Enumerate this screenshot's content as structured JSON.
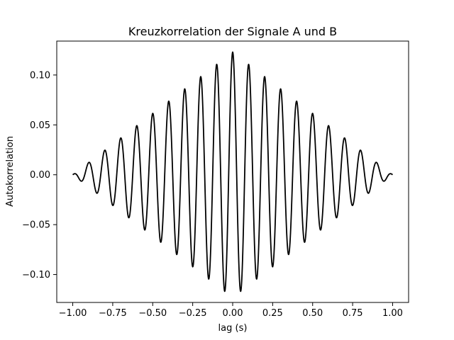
{
  "chart_data": {
    "type": "line",
    "title": "Kreuzkorrelation der Signale A und B",
    "xlabel": "lag  (s)",
    "ylabel": "Autokorrelation",
    "xlim": [
      -1.1,
      1.1
    ],
    "ylim": [
      -0.128,
      0.134
    ],
    "xticks": [
      -1.0,
      -0.75,
      -0.5,
      -0.25,
      0.0,
      0.25,
      0.5,
      0.75,
      1.0
    ],
    "xtick_labels": [
      "−1.00",
      "−0.75",
      "−0.50",
      "−0.25",
      "0.00",
      "0.25",
      "0.50",
      "0.75",
      "1.00"
    ],
    "yticks": [
      -0.1,
      -0.05,
      0.0,
      0.05,
      0.1
    ],
    "ytick_labels": [
      "−0.10",
      "−0.05",
      "0.00",
      "0.05",
      "0.10"
    ],
    "grid": false,
    "line_color": "#000000",
    "series": [
      {
        "lag_range": [
          -1.0,
          1.0
        ],
        "peak_amplitude": 0.123,
        "peak_lag": 0.0,
        "oscillation_frequency_hz": 10,
        "envelope": "triangular",
        "local_maxima": [
          {
            "x": -0.9,
            "y": 0.012
          },
          {
            "x": -0.8,
            "y": 0.025
          },
          {
            "x": -0.7,
            "y": 0.037
          },
          {
            "x": -0.6,
            "y": 0.049
          },
          {
            "x": -0.5,
            "y": 0.061
          },
          {
            "x": -0.4,
            "y": 0.074
          },
          {
            "x": -0.3,
            "y": 0.086
          },
          {
            "x": -0.2,
            "y": 0.098
          },
          {
            "x": -0.1,
            "y": 0.11
          },
          {
            "x": 0.0,
            "y": 0.123
          },
          {
            "x": 0.1,
            "y": 0.11
          },
          {
            "x": 0.2,
            "y": 0.098
          },
          {
            "x": 0.3,
            "y": 0.086
          },
          {
            "x": 0.4,
            "y": 0.074
          },
          {
            "x": 0.5,
            "y": 0.061
          },
          {
            "x": 0.6,
            "y": 0.049
          },
          {
            "x": 0.7,
            "y": 0.037
          },
          {
            "x": 0.8,
            "y": 0.025
          },
          {
            "x": 0.9,
            "y": 0.012
          }
        ],
        "local_minima": [
          {
            "x": -0.95,
            "y": -0.006
          },
          {
            "x": -0.85,
            "y": -0.018
          },
          {
            "x": -0.75,
            "y": -0.031
          },
          {
            "x": -0.65,
            "y": -0.043
          },
          {
            "x": -0.55,
            "y": -0.055
          },
          {
            "x": -0.45,
            "y": -0.067
          },
          {
            "x": -0.35,
            "y": -0.08
          },
          {
            "x": -0.25,
            "y": -0.092
          },
          {
            "x": -0.15,
            "y": -0.104
          },
          {
            "x": -0.05,
            "y": -0.116
          },
          {
            "x": 0.05,
            "y": -0.116
          },
          {
            "x": 0.15,
            "y": -0.104
          },
          {
            "x": 0.25,
            "y": -0.092
          },
          {
            "x": 0.35,
            "y": -0.08
          },
          {
            "x": 0.45,
            "y": -0.067
          },
          {
            "x": 0.55,
            "y": -0.055
          },
          {
            "x": 0.65,
            "y": -0.043
          },
          {
            "x": 0.75,
            "y": -0.031
          },
          {
            "x": 0.85,
            "y": -0.018
          },
          {
            "x": 0.95,
            "y": -0.006
          }
        ]
      }
    ]
  }
}
